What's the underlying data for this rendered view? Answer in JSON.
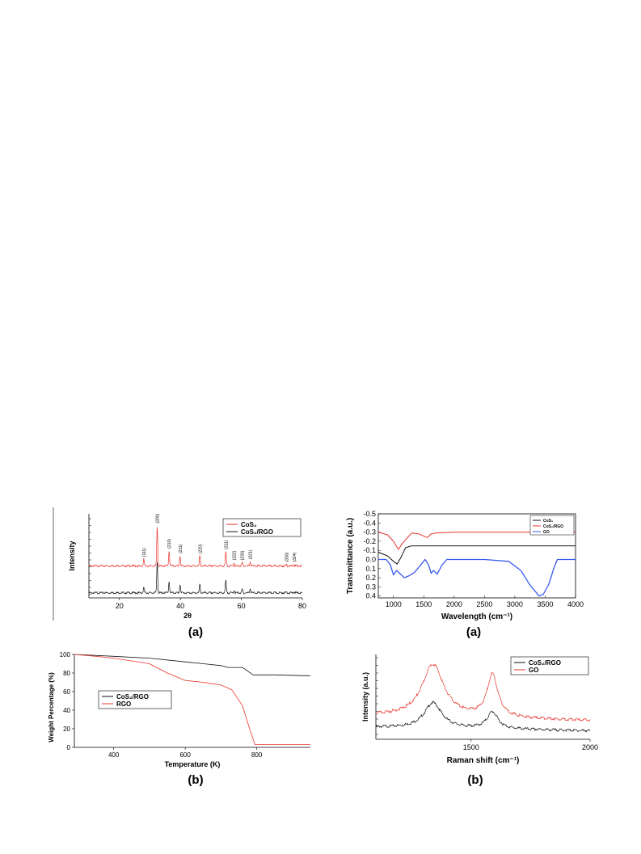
{
  "figures": [
    {
      "caption": "(a)"
    },
    {
      "caption": "(a)"
    },
    {
      "caption": "(b)"
    },
    {
      "caption": "(b)"
    }
  ],
  "chart_data": [
    {
      "type": "line",
      "xlabel": "2θ",
      "ylabel": "Intensity",
      "xlim": [
        10,
        80
      ],
      "ylim": [
        0,
        100
      ],
      "xticks": [
        20,
        40,
        60,
        80
      ],
      "yticks_shown": false,
      "legend": {
        "placement": "top-right",
        "entries": [
          "CoS₂",
          "CoS₂/RGO"
        ]
      },
      "peak_labels": [
        {
          "x": 28.0,
          "label": "(111)"
        },
        {
          "x": 32.4,
          "label": "(200)"
        },
        {
          "x": 36.3,
          "label": "(210)"
        },
        {
          "x": 39.9,
          "label": "(211)"
        },
        {
          "x": 46.4,
          "label": "(220)"
        },
        {
          "x": 54.9,
          "label": "(311)"
        },
        {
          "x": 57.6,
          "label": "(222)"
        },
        {
          "x": 60.3,
          "label": "(230)"
        },
        {
          "x": 62.9,
          "label": "(321)"
        },
        {
          "x": 74.8,
          "label": "(330)"
        },
        {
          "x": 77.3,
          "label": "(324)"
        }
      ],
      "series": [
        {
          "color": "#e8332b",
          "baseline": 38,
          "peaks": [
            [
              28.0,
              8
            ],
            [
              32.4,
              48
            ],
            [
              36.3,
              18
            ],
            [
              39.9,
              12
            ],
            [
              46.4,
              12
            ],
            [
              54.9,
              17
            ],
            [
              57.6,
              4
            ],
            [
              60.3,
              4
            ],
            [
              62.9,
              5
            ],
            [
              74.8,
              2
            ],
            [
              77.3,
              2
            ]
          ]
        },
        {
          "color": "#111111",
          "baseline": 6,
          "peaks": [
            [
              28.0,
              6
            ],
            [
              32.4,
              38
            ],
            [
              36.3,
              14
            ],
            [
              39.9,
              10
            ],
            [
              46.4,
              10
            ],
            [
              54.9,
              15
            ],
            [
              57.6,
              3
            ],
            [
              60.3,
              4
            ],
            [
              62.9,
              5
            ],
            [
              74.8,
              1
            ],
            [
              77.3,
              1
            ]
          ]
        }
      ]
    },
    {
      "type": "line",
      "xlabel": "Wavelength (cm⁻¹)",
      "ylabel": "Transmittance (a.u.)",
      "xlim": [
        750,
        4000
      ],
      "ylim": [
        -0.5,
        0.42
      ],
      "y_inverted": true,
      "xticks": [
        1000,
        1500,
        2000,
        2500,
        3000,
        3500,
        4000
      ],
      "yticks": [
        "-0.5",
        "-0.4",
        "-0.3",
        "-0.2",
        "-0.1",
        "0.0",
        "0.1",
        "0.2",
        "0.3",
        "0.4"
      ],
      "legend": {
        "placement": "top-right",
        "entries": [
          "CoS₂",
          "CoS₂/RGO",
          "GO"
        ]
      },
      "series": [
        {
          "color": "#111111",
          "points": [
            [
              750,
              -0.08
            ],
            [
              900,
              -0.04
            ],
            [
              1000,
              0.02
            ],
            [
              1060,
              0.05
            ],
            [
              1120,
              -0.02
            ],
            [
              1200,
              -0.13
            ],
            [
              1300,
              -0.15
            ],
            [
              2000,
              -0.15
            ],
            [
              3000,
              -0.15
            ],
            [
              4000,
              -0.15
            ]
          ]
        },
        {
          "color": "#e8332b",
          "points": [
            [
              750,
              -0.3
            ],
            [
              900,
              -0.27
            ],
            [
              1000,
              -0.2
            ],
            [
              1080,
              -0.11
            ],
            [
              1150,
              -0.18
            ],
            [
              1300,
              -0.29
            ],
            [
              1420,
              -0.28
            ],
            [
              1560,
              -0.24
            ],
            [
              1620,
              -0.28
            ],
            [
              1700,
              -0.29
            ],
            [
              2000,
              -0.3
            ],
            [
              3000,
              -0.3
            ],
            [
              4000,
              -0.3
            ]
          ]
        },
        {
          "color": "#3a5af0",
          "points": [
            [
              750,
              0.0
            ],
            [
              880,
              0.0
            ],
            [
              950,
              0.06
            ],
            [
              1000,
              0.17
            ],
            [
              1050,
              0.12
            ],
            [
              1100,
              0.15
            ],
            [
              1180,
              0.2
            ],
            [
              1250,
              0.18
            ],
            [
              1350,
              0.14
            ],
            [
              1460,
              0.05
            ],
            [
              1520,
              0.0
            ],
            [
              1580,
              0.06
            ],
            [
              1620,
              0.15
            ],
            [
              1660,
              0.12
            ],
            [
              1720,
              0.16
            ],
            [
              1800,
              0.06
            ],
            [
              1880,
              0.0
            ],
            [
              2500,
              0.0
            ],
            [
              2900,
              0.02
            ],
            [
              3100,
              0.12
            ],
            [
              3250,
              0.28
            ],
            [
              3400,
              0.4
            ],
            [
              3470,
              0.38
            ],
            [
              3560,
              0.27
            ],
            [
              3640,
              0.1
            ],
            [
              3700,
              0.0
            ],
            [
              4000,
              0.0
            ]
          ]
        }
      ]
    },
    {
      "type": "line",
      "xlabel": "Temperature (K)",
      "ylabel": "Weight Percentage (%)",
      "xlim": [
        290,
        950
      ],
      "ylim": [
        0,
        100
      ],
      "xticks": [
        400,
        600,
        800
      ],
      "yticks": [
        0,
        20,
        40,
        60,
        80,
        100
      ],
      "legend": {
        "placement": "bottom-left",
        "entries": [
          "CoS₂/RGO",
          "RGO"
        ]
      },
      "series": [
        {
          "color": "#111111",
          "points": [
            [
              290,
              100
            ],
            [
              400,
              98
            ],
            [
              500,
              96
            ],
            [
              600,
              92
            ],
            [
              700,
              88
            ],
            [
              720,
              86
            ],
            [
              760,
              86
            ],
            [
              790,
              78
            ],
            [
              850,
              78
            ],
            [
              950,
              77
            ]
          ]
        },
        {
          "color": "#e8332b",
          "points": [
            [
              290,
              100
            ],
            [
              380,
              97
            ],
            [
              450,
              93
            ],
            [
              500,
              90
            ],
            [
              550,
              80
            ],
            [
              600,
              72
            ],
            [
              650,
              70
            ],
            [
              700,
              67
            ],
            [
              730,
              62
            ],
            [
              760,
              45
            ],
            [
              780,
              20
            ],
            [
              795,
              3
            ],
            [
              850,
              3
            ],
            [
              950,
              3
            ]
          ]
        }
      ]
    },
    {
      "type": "line",
      "xlabel": "Raman shift (cm⁻¹)",
      "ylabel": "Intensity (a.u.)",
      "xlim": [
        1100,
        2000
      ],
      "ylim": [
        0,
        100
      ],
      "xticks": [
        1500,
        2000
      ],
      "yticks_shown": false,
      "legend": {
        "placement": "top-right",
        "entries": [
          "CoS₂/RGO",
          "GO"
        ]
      },
      "series": [
        {
          "color": "#111111",
          "base": [
            14,
            10
          ],
          "bands": [
            [
              1340,
              30,
              90
            ],
            [
              1590,
              20,
              55
            ]
          ]
        },
        {
          "color": "#e8332b",
          "base": [
            28,
            22
          ],
          "bands": [
            [
              1340,
              62,
              110
            ],
            [
              1590,
              50,
              55
            ]
          ]
        }
      ]
    }
  ]
}
